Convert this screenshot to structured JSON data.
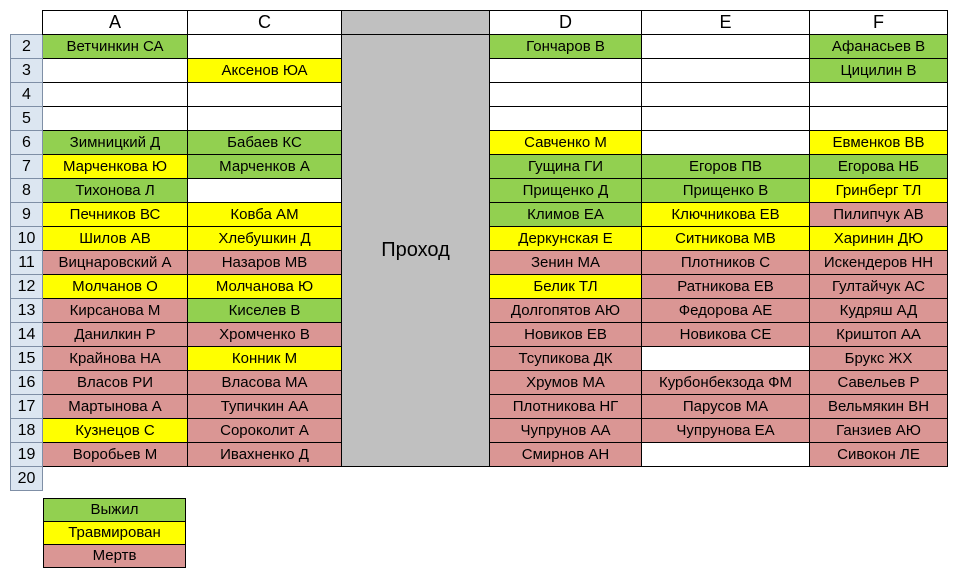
{
  "columns": [
    "A",
    "C",
    "",
    "D",
    "E",
    "F"
  ],
  "aisle_label": "Проход",
  "legend": [
    {
      "label": "Выжил",
      "status": "survived"
    },
    {
      "label": "Травмирован",
      "status": "injured"
    },
    {
      "label": "Мертв",
      "status": "dead"
    }
  ],
  "status_colors": {
    "survived": "#92d050",
    "injured": "#ffff00",
    "dead": "#da9694",
    "none": "#ffffff"
  },
  "rows": [
    {
      "num": "2",
      "cells": [
        [
          "Ветчинкин СА",
          "survived"
        ],
        [
          "",
          "none"
        ],
        [
          "Гончаров В",
          "survived"
        ],
        [
          "",
          "none"
        ],
        [
          "Афанасьев В",
          "survived"
        ]
      ]
    },
    {
      "num": "3",
      "cells": [
        [
          "",
          "none"
        ],
        [
          "Аксенов ЮА",
          "injured"
        ],
        [
          "",
          "none"
        ],
        [
          "",
          "none"
        ],
        [
          "Цицилин В",
          "survived"
        ]
      ]
    },
    {
      "num": "4",
      "cells": [
        [
          "",
          "none"
        ],
        [
          "",
          "none"
        ],
        [
          "",
          "none"
        ],
        [
          "",
          "none"
        ],
        [
          "",
          "none"
        ]
      ]
    },
    {
      "num": "5",
      "cells": [
        [
          "",
          "none"
        ],
        [
          "",
          "none"
        ],
        [
          "",
          "none"
        ],
        [
          "",
          "none"
        ],
        [
          "",
          "none"
        ]
      ]
    },
    {
      "num": "6",
      "cells": [
        [
          "Зимницкий Д",
          "survived"
        ],
        [
          "Бабаев КС",
          "survived"
        ],
        [
          "Савченко М",
          "injured"
        ],
        [
          "",
          "none"
        ],
        [
          "Евменков ВВ",
          "injured"
        ]
      ]
    },
    {
      "num": "7",
      "cells": [
        [
          "Марченкова Ю",
          "injured"
        ],
        [
          "Марченков А",
          "survived"
        ],
        [
          "Гущина ГИ",
          "survived"
        ],
        [
          "Егоров ПВ",
          "survived"
        ],
        [
          "Егорова НБ",
          "survived"
        ]
      ]
    },
    {
      "num": "8",
      "cells": [
        [
          "Тихонова Л",
          "survived"
        ],
        [
          "",
          "none"
        ],
        [
          "Прищенко Д",
          "survived"
        ],
        [
          "Прищенко В",
          "survived"
        ],
        [
          "Гринберг ТЛ",
          "injured"
        ]
      ]
    },
    {
      "num": "9",
      "cells": [
        [
          "Печников ВС",
          "injured"
        ],
        [
          "Ковба АМ",
          "injured"
        ],
        [
          "Климов ЕА",
          "survived"
        ],
        [
          "Ключникова ЕВ",
          "injured"
        ],
        [
          "Пилипчук АВ",
          "dead"
        ]
      ]
    },
    {
      "num": "10",
      "cells": [
        [
          "Шилов АВ",
          "injured"
        ],
        [
          "Хлебушкин Д",
          "injured"
        ],
        [
          "Деркунская Е",
          "injured"
        ],
        [
          "Ситникова МВ",
          "injured"
        ],
        [
          "Харинин ДЮ",
          "injured"
        ]
      ]
    },
    {
      "num": "11",
      "cells": [
        [
          "Вицнаровский А",
          "dead"
        ],
        [
          "Назаров МВ",
          "dead"
        ],
        [
          "Зенин МА",
          "dead"
        ],
        [
          "Плотников С",
          "dead"
        ],
        [
          "Искендеров НН",
          "dead"
        ]
      ]
    },
    {
      "num": "12",
      "cells": [
        [
          "Молчанов О",
          "injured"
        ],
        [
          "Молчанова Ю",
          "injured"
        ],
        [
          "Белик ТЛ",
          "injured"
        ],
        [
          "Ратникова ЕВ",
          "dead"
        ],
        [
          "Гултайчук АС",
          "dead"
        ]
      ]
    },
    {
      "num": "13",
      "cells": [
        [
          "Кирсанова М",
          "dead"
        ],
        [
          "Киселев В",
          "survived"
        ],
        [
          "Долгопятов АЮ",
          "dead"
        ],
        [
          "Федорова АЕ",
          "dead"
        ],
        [
          "Кудряш АД",
          "dead"
        ]
      ]
    },
    {
      "num": "14",
      "cells": [
        [
          "Данилкин Р",
          "dead"
        ],
        [
          "Хромченко В",
          "dead"
        ],
        [
          "Новиков ЕВ",
          "dead"
        ],
        [
          "Новикова СЕ",
          "dead"
        ],
        [
          "Криштоп АА",
          "dead"
        ]
      ]
    },
    {
      "num": "15",
      "cells": [
        [
          "Крайнова НА",
          "dead"
        ],
        [
          "Конник М",
          "injured"
        ],
        [
          "Тсупикова ДК",
          "dead"
        ],
        [
          "",
          "none"
        ],
        [
          "Брукс ЖХ",
          "dead"
        ]
      ]
    },
    {
      "num": "16",
      "cells": [
        [
          "Власов РИ",
          "dead"
        ],
        [
          "Власова МА",
          "dead"
        ],
        [
          "Хрумов МА",
          "dead"
        ],
        [
          "Курбонбекзода  ФМ",
          "dead"
        ],
        [
          "Савельев Р",
          "dead"
        ]
      ]
    },
    {
      "num": "17",
      "cells": [
        [
          "Мартынова А",
          "dead"
        ],
        [
          "Тупичкин АА",
          "dead"
        ],
        [
          "Плотникова НГ",
          "dead"
        ],
        [
          "Парусов МА",
          "dead"
        ],
        [
          "Вельмякин ВН",
          "dead"
        ]
      ]
    },
    {
      "num": "18",
      "cells": [
        [
          "Кузнецов С",
          "injured"
        ],
        [
          "Сороколит А",
          "dead"
        ],
        [
          "Чупрунов АА",
          "dead"
        ],
        [
          "Чупрунова ЕА",
          "dead"
        ],
        [
          "Ганзиев АЮ",
          "dead"
        ]
      ]
    },
    {
      "num": "19",
      "cells": [
        [
          "Воробьев М",
          "dead"
        ],
        [
          "Ивахненко Д",
          "dead"
        ],
        [
          "Смирнов АН",
          "dead"
        ],
        [
          "",
          "none"
        ],
        [
          "Сивокон ЛЕ",
          "dead"
        ]
      ]
    },
    {
      "num": "20",
      "cells": null
    }
  ]
}
